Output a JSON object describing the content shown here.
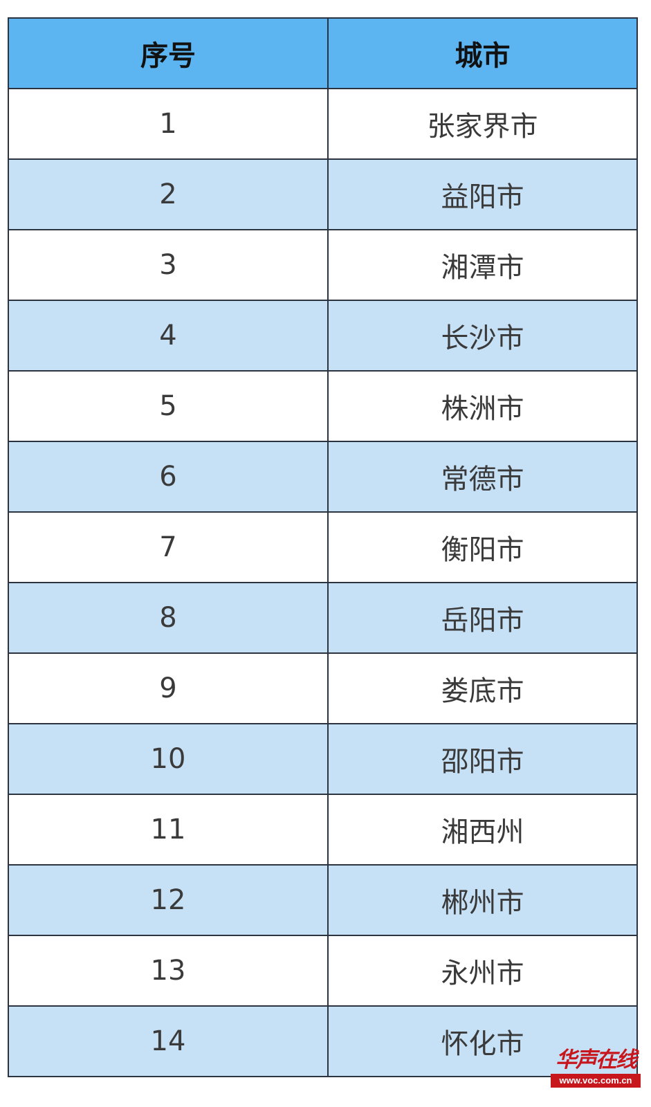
{
  "table": {
    "headers": [
      "序号",
      "城市"
    ],
    "rows": [
      [
        "1",
        "张家界市"
      ],
      [
        "2",
        "益阳市"
      ],
      [
        "3",
        "湘潭市"
      ],
      [
        "4",
        "长沙市"
      ],
      [
        "5",
        "株洲市"
      ],
      [
        "6",
        "常德市"
      ],
      [
        "7",
        "衡阳市"
      ],
      [
        "8",
        "岳阳市"
      ],
      [
        "9",
        "娄底市"
      ],
      [
        "10",
        "邵阳市"
      ],
      [
        "11",
        "湘西州"
      ],
      [
        "12",
        "郴州市"
      ],
      [
        "13",
        "永州市"
      ],
      [
        "14",
        "怀化市"
      ]
    ],
    "colors": {
      "header_bg": "#5cb4f0",
      "alt_row_bg": "#c6e0f6",
      "border": "#2c3340"
    }
  },
  "watermark": {
    "logo_text": "华声在线",
    "url": "www.voc.com.cn",
    "color": "#c8161d"
  }
}
